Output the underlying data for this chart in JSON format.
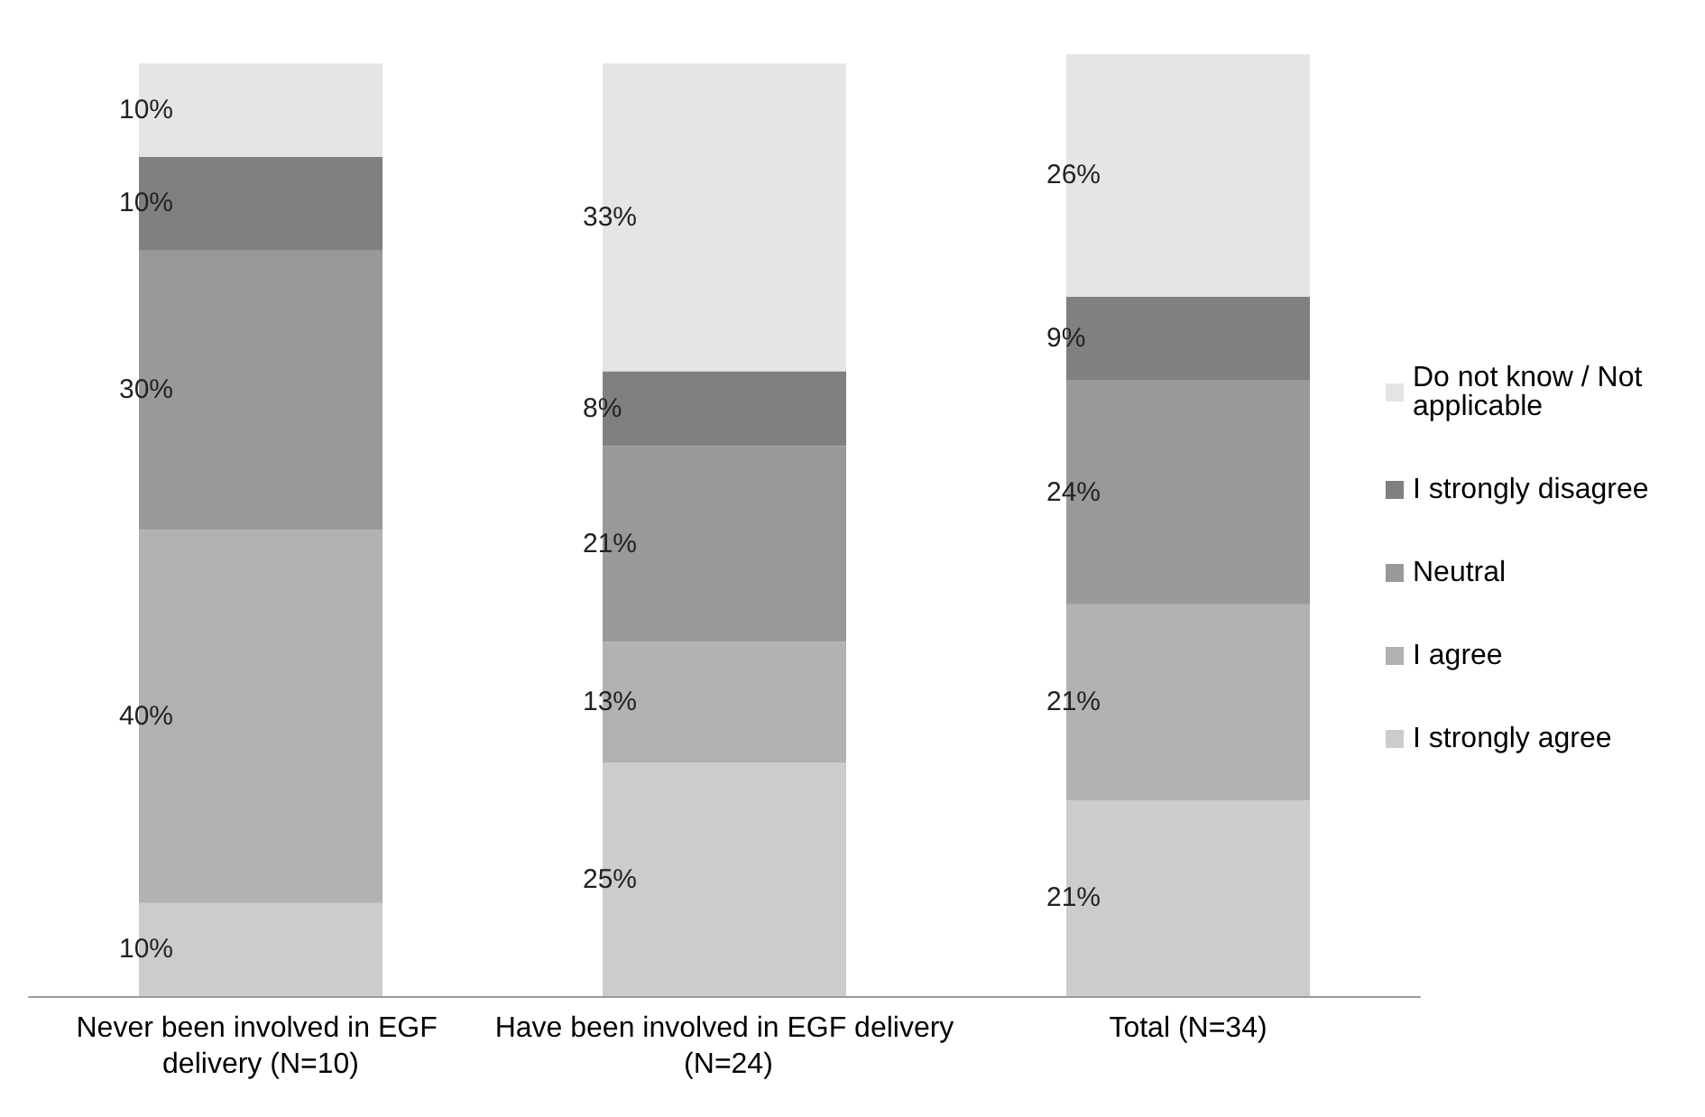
{
  "chart_data": {
    "type": "bar",
    "stacked": true,
    "legend": "right",
    "categories": [
      "Never been involved in EGF delivery (N=10)",
      "Have been involved in EGF delivery (N=24)",
      "Total (N=34)"
    ],
    "series": [
      {
        "name": "I strongly agree",
        "color": "#cccccc",
        "values": [
          10,
          25,
          21
        ],
        "value_labels": [
          "10%",
          "25%",
          "21%"
        ]
      },
      {
        "name": "I agree",
        "color": "#b2b2b2",
        "values": [
          40,
          13,
          21
        ],
        "value_labels": [
          "40%",
          "13%",
          "21%"
        ]
      },
      {
        "name": "Neutral",
        "color": "#999999",
        "values": [
          30,
          21,
          24
        ],
        "value_labels": [
          "30%",
          "21%",
          "24%"
        ]
      },
      {
        "name": "I strongly disagree",
        "color": "#808080",
        "values": [
          10,
          8,
          9
        ],
        "value_labels": [
          "10%",
          "8%",
          "9%"
        ]
      },
      {
        "name": "Do not know / Not applicable",
        "color": "#e5e5e5",
        "values": [
          10,
          33,
          26
        ],
        "value_labels": [
          "10%",
          "33%",
          "26%"
        ]
      }
    ]
  }
}
